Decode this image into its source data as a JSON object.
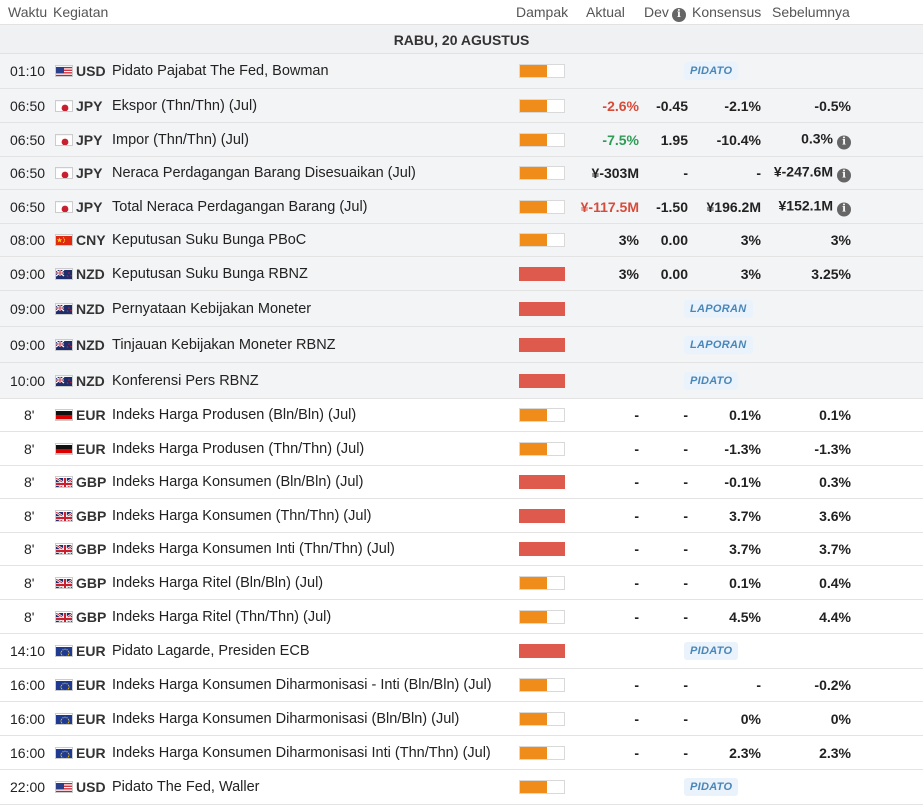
{
  "header": {
    "waktu": "Waktu",
    "kegiatan": "Kegiatan",
    "dampak": "Dampak",
    "aktual": "Aktual",
    "dev": "Dev",
    "konsensus": "Konsensus",
    "sebelumnya": "Sebelumnya"
  },
  "day_label": "RABU, 20 AGUSTUS",
  "rows": [
    {
      "time": "01:10",
      "flag": "us",
      "currency": "USD",
      "event": "Pidato Pajabat The Fed, Bowman",
      "impact": "medium",
      "badge": "PIDATO",
      "past": true
    },
    {
      "time": "06:50",
      "flag": "jp",
      "currency": "JPY",
      "event": "Ekspor (Thn/Thn) (Jul)",
      "impact": "medium",
      "actual": "-2.6%",
      "actual_tone": "neg",
      "dev": "-0.45",
      "consensus": "-2.1%",
      "previous": "-0.5%",
      "past": true
    },
    {
      "time": "06:50",
      "flag": "jp",
      "currency": "JPY",
      "event": "Impor (Thn/Thn) (Jul)",
      "impact": "medium",
      "actual": "-7.5%",
      "actual_tone": "pos",
      "dev": "1.95",
      "consensus": "-10.4%",
      "previous": "0.3%",
      "previous_info": true,
      "past": true
    },
    {
      "time": "06:50",
      "flag": "jp",
      "currency": "JPY",
      "event": "Neraca Perdagangan Barang Disesuaikan (Jul)",
      "impact": "medium",
      "actual": "¥-303M",
      "dev": "-",
      "consensus": "-",
      "previous": "¥-247.6M",
      "previous_info": true,
      "past": true
    },
    {
      "time": "06:50",
      "flag": "jp",
      "currency": "JPY",
      "event": "Total Neraca Perdagangan Barang (Jul)",
      "impact": "medium",
      "actual": "¥-117.5M",
      "actual_tone": "neg",
      "dev": "-1.50",
      "consensus": "¥196.2M",
      "previous": "¥152.1M",
      "previous_info": true,
      "past": true
    },
    {
      "time": "08:00",
      "flag": "cn",
      "currency": "CNY",
      "event": "Keputusan Suku Bunga PBoC",
      "impact": "medium",
      "actual": "3%",
      "dev": "0.00",
      "consensus": "3%",
      "previous": "3%",
      "past": true
    },
    {
      "time": "09:00",
      "flag": "nz",
      "currency": "NZD",
      "event": "Keputusan Suku Bunga RBNZ",
      "impact": "high",
      "actual": "3%",
      "dev": "0.00",
      "consensus": "3%",
      "previous": "3.25%",
      "past": true
    },
    {
      "time": "09:00",
      "flag": "nz",
      "currency": "NZD",
      "event": "Pernyataan Kebijakan Moneter",
      "impact": "high",
      "badge": "LAPORAN",
      "past": true
    },
    {
      "time": "09:00",
      "flag": "nz",
      "currency": "NZD",
      "event": "Tinjauan Kebijakan Moneter RBNZ",
      "impact": "high",
      "badge": "LAPORAN",
      "past": true
    },
    {
      "time": "10:00",
      "flag": "nz",
      "currency": "NZD",
      "event": "Konferensi Pers RBNZ",
      "impact": "high",
      "badge": "PIDATO",
      "past": true
    },
    {
      "time": "8'",
      "flag": "de",
      "currency": "EUR",
      "event": "Indeks Harga Produsen (Bln/Bln) (Jul)",
      "impact": "medium",
      "actual": "-",
      "dev": "-",
      "consensus": "0.1%",
      "previous": "0.1%"
    },
    {
      "time": "8'",
      "flag": "de",
      "currency": "EUR",
      "event": "Indeks Harga Produsen (Thn/Thn) (Jul)",
      "impact": "medium",
      "actual": "-",
      "dev": "-",
      "consensus": "-1.3%",
      "previous": "-1.3%"
    },
    {
      "time": "8'",
      "flag": "gb",
      "currency": "GBP",
      "event": "Indeks Harga Konsumen (Bln/Bln) (Jul)",
      "impact": "high",
      "actual": "-",
      "dev": "-",
      "consensus": "-0.1%",
      "previous": "0.3%"
    },
    {
      "time": "8'",
      "flag": "gb",
      "currency": "GBP",
      "event": "Indeks Harga Konsumen (Thn/Thn) (Jul)",
      "impact": "high",
      "actual": "-",
      "dev": "-",
      "consensus": "3.7%",
      "previous": "3.6%"
    },
    {
      "time": "8'",
      "flag": "gb",
      "currency": "GBP",
      "event": "Indeks Harga Konsumen Inti (Thn/Thn) (Jul)",
      "impact": "high",
      "actual": "-",
      "dev": "-",
      "consensus": "3.7%",
      "previous": "3.7%"
    },
    {
      "time": "8'",
      "flag": "gb",
      "currency": "GBP",
      "event": "Indeks Harga Ritel (Bln/Bln) (Jul)",
      "impact": "medium",
      "actual": "-",
      "dev": "-",
      "consensus": "0.1%",
      "previous": "0.4%"
    },
    {
      "time": "8'",
      "flag": "gb",
      "currency": "GBP",
      "event": "Indeks Harga Ritel (Thn/Thn) (Jul)",
      "impact": "medium",
      "actual": "-",
      "dev": "-",
      "consensus": "4.5%",
      "previous": "4.4%"
    },
    {
      "time": "14:10",
      "flag": "eu",
      "currency": "EUR",
      "event": "Pidato Lagarde, Presiden ECB",
      "impact": "high",
      "badge": "PIDATO"
    },
    {
      "time": "16:00",
      "flag": "eu",
      "currency": "EUR",
      "event": "Indeks Harga Konsumen Diharmonisasi - Inti (Bln/Bln) (Jul)",
      "impact": "medium",
      "actual": "-",
      "dev": "-",
      "consensus": "-",
      "previous": "-0.2%"
    },
    {
      "time": "16:00",
      "flag": "eu",
      "currency": "EUR",
      "event": "Indeks Harga Konsumen Diharmonisasi (Bln/Bln) (Jul)",
      "impact": "medium",
      "actual": "-",
      "dev": "-",
      "consensus": "0%",
      "previous": "0%"
    },
    {
      "time": "16:00",
      "flag": "eu",
      "currency": "EUR",
      "event": "Indeks Harga Konsumen Diharmonisasi Inti (Thn/Thn) (Jul)",
      "impact": "medium",
      "actual": "-",
      "dev": "-",
      "consensus": "2.3%",
      "previous": "2.3%"
    },
    {
      "time": "22:00",
      "flag": "us",
      "currency": "USD",
      "event": "Pidato The Fed, Waller",
      "impact": "medium",
      "badge": "PIDATO"
    }
  ],
  "colors": {
    "impact_medium": "#f08c1a",
    "impact_high": "#de5a4c",
    "negative": "#d64b3a",
    "positive": "#2e9b57",
    "badge_text": "#4a86b8"
  }
}
